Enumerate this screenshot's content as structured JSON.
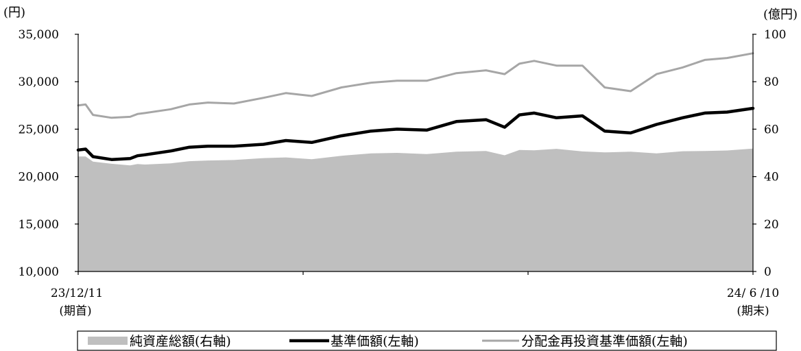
{
  "chart_data": {
    "type": "line",
    "title": "",
    "left_axis": {
      "unit_label": "(円)",
      "ylim": [
        10000,
        35000
      ],
      "ticks": [
        10000,
        15000,
        20000,
        25000,
        30000,
        35000
      ],
      "tick_labels": [
        "10,000",
        "15,000",
        "20,000",
        "25,000",
        "30,000",
        "35,000"
      ]
    },
    "right_axis": {
      "unit_label": "(億円)",
      "ylim": [
        0,
        100
      ],
      "ticks": [
        0,
        20,
        40,
        60,
        80,
        100
      ],
      "tick_labels": [
        "0",
        "20",
        "40",
        "60",
        "80",
        "100"
      ]
    },
    "x_axis": {
      "start_label": "23/12/11",
      "start_sublabel": "(期首)",
      "end_label": "24/ 6 /10",
      "end_sublabel": "(期末)",
      "x_range": [
        "2023-12-11",
        "2024-06-10"
      ]
    },
    "grid": false,
    "legend_position": "bottom",
    "x": [
      "2023-12-11",
      "2023-12-13",
      "2023-12-15",
      "2023-12-20",
      "2023-12-25",
      "2023-12-27",
      "2023-12-29",
      "2024-01-05",
      "2024-01-10",
      "2024-01-15",
      "2024-01-22",
      "2024-01-30",
      "2024-02-05",
      "2024-02-12",
      "2024-02-20",
      "2024-02-28",
      "2024-03-06",
      "2024-03-14",
      "2024-03-22",
      "2024-03-30",
      "2024-04-04",
      "2024-04-08",
      "2024-04-12",
      "2024-04-18",
      "2024-04-25",
      "2024-05-01",
      "2024-05-08",
      "2024-05-15",
      "2024-05-22",
      "2024-05-28",
      "2024-06-03",
      "2024-06-10"
    ],
    "series": [
      {
        "name": "純資産総額(右軸)",
        "axis": "right",
        "style": "area",
        "color": "#bfbfbf",
        "values": [
          48.5,
          48.5,
          46.3,
          45.4,
          44.7,
          45.3,
          45.1,
          45.6,
          46.5,
          46.8,
          47.0,
          47.8,
          48.1,
          47.3,
          48.8,
          49.8,
          50.0,
          49.5,
          50.5,
          50.8,
          49.0,
          51.2,
          51.1,
          51.7,
          50.6,
          50.2,
          50.5,
          49.8,
          50.7,
          50.8,
          51.0,
          51.8
        ]
      },
      {
        "name": "基準価額(左軸)",
        "axis": "left",
        "style": "line",
        "color": "#000000",
        "values": [
          22800,
          22900,
          22100,
          21800,
          21900,
          22200,
          22300,
          22700,
          23100,
          23200,
          23200,
          23400,
          23800,
          23600,
          24300,
          24800,
          25000,
          24900,
          25800,
          26000,
          25200,
          26500,
          26700,
          26200,
          26400,
          24800,
          24600,
          25500,
          26200,
          26700,
          26800,
          27200
        ]
      },
      {
        "name": "分配金再投資基準価額(左軸)",
        "axis": "left",
        "style": "line",
        "color": "#a6a6a6",
        "values": [
          27500,
          27600,
          26500,
          26200,
          26300,
          26600,
          26700,
          27100,
          27600,
          27800,
          27700,
          28300,
          28800,
          28500,
          29400,
          29900,
          30100,
          30100,
          30900,
          31200,
          30800,
          31900,
          32200,
          31700,
          31700,
          29400,
          29000,
          30800,
          31500,
          32300,
          32500,
          33000
        ]
      }
    ]
  }
}
